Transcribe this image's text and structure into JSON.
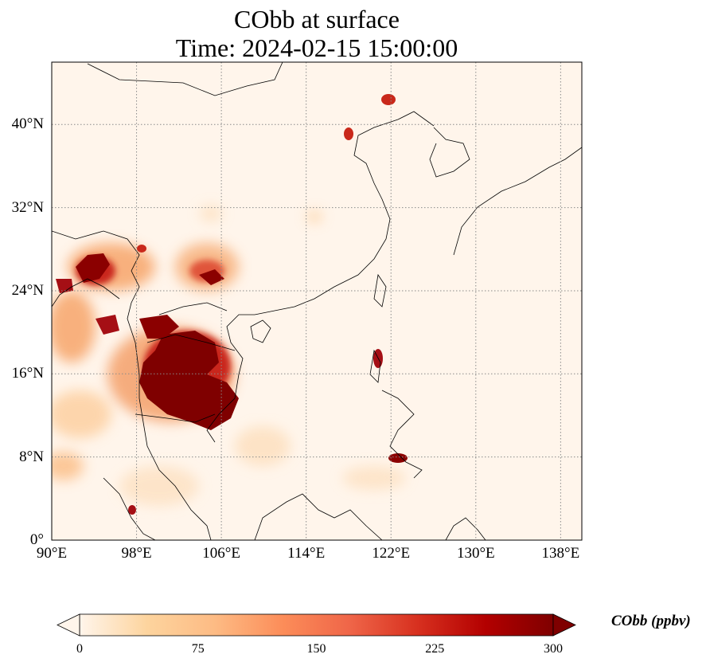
{
  "title": {
    "line1": "CObb at surface",
    "line2": "Time: 2024-02-15 15:00:00"
  },
  "map": {
    "lon_range": [
      90,
      140
    ],
    "lat_range": [
      0,
      46
    ],
    "lon_ticks": [
      90,
      98,
      106,
      114,
      122,
      130,
      138
    ],
    "lat_ticks": [
      0,
      8,
      16,
      24,
      32,
      40
    ],
    "lon_labels": [
      "90°E",
      "98°E",
      "106°E",
      "114°E",
      "122°E",
      "130°E",
      "138°E"
    ],
    "lat_labels": [
      "0°",
      "8°N",
      "16°N",
      "24°N",
      "32°N",
      "40°N"
    ],
    "gridlines": true
  },
  "colorbar": {
    "label": "CObb (ppbv)",
    "ticks": [
      "0",
      "75",
      "150",
      "225",
      "300"
    ],
    "range": [
      0,
      300
    ],
    "colormap": [
      "#fff5eb",
      "#fdd49e",
      "#fdbb84",
      "#fc8d59",
      "#ef6548",
      "#d7301f",
      "#b30000",
      "#7f0000"
    ],
    "extend": "both"
  },
  "colors": {
    "background": "#fff5eb",
    "low": "#fde2c4",
    "mid": "#f7a56b",
    "high": "#c9281a",
    "max": "#7f0000",
    "coastline": "#000000",
    "grid": "#8a8a8a"
  }
}
